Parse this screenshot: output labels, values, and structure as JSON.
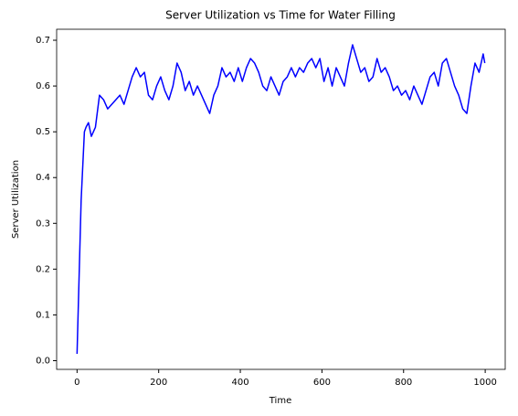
{
  "chart_data": {
    "type": "line",
    "title": "Server Utilization vs Time for Water Filling",
    "x_label": "Time",
    "y_label": "Server Utilization",
    "xlim": [
      -50,
      1049
    ],
    "ylim": [
      -0.019,
      0.724
    ],
    "xticks": [
      0,
      200,
      400,
      600,
      800,
      1000
    ],
    "yticks": [
      {
        "value": 0,
        "label": "0.0"
      },
      0.1,
      0.2,
      0.3,
      0.4,
      0.5,
      0.6,
      0.7
    ],
    "series": [
      {
        "color": "#0000ff",
        "x": [
          0,
          10,
          18,
          22,
          28,
          35,
          45,
          55,
          65,
          75,
          85,
          95,
          105,
          115,
          125,
          135,
          145,
          155,
          165,
          175,
          185,
          195,
          205,
          215,
          225,
          235,
          245,
          255,
          265,
          275,
          285,
          295,
          305,
          315,
          325,
          335,
          345,
          355,
          365,
          375,
          385,
          395,
          405,
          415,
          425,
          435,
          445,
          455,
          465,
          475,
          485,
          495,
          505,
          515,
          525,
          535,
          545,
          555,
          565,
          575,
          585,
          595,
          605,
          615,
          625,
          635,
          645,
          655,
          665,
          675,
          685,
          695,
          705,
          715,
          725,
          735,
          745,
          755,
          765,
          775,
          785,
          795,
          805,
          815,
          825,
          835,
          845,
          855,
          865,
          875,
          885,
          895,
          905,
          915,
          925,
          935,
          945,
          955,
          965,
          975,
          985,
          995,
          999
        ],
        "values": [
          0.015,
          0.35,
          0.5,
          0.51,
          0.52,
          0.49,
          0.51,
          0.58,
          0.57,
          0.55,
          0.56,
          0.57,
          0.58,
          0.56,
          0.59,
          0.62,
          0.64,
          0.62,
          0.63,
          0.58,
          0.57,
          0.6,
          0.62,
          0.59,
          0.57,
          0.6,
          0.65,
          0.63,
          0.59,
          0.61,
          0.58,
          0.6,
          0.58,
          0.56,
          0.54,
          0.58,
          0.6,
          0.64,
          0.62,
          0.63,
          0.61,
          0.64,
          0.61,
          0.64,
          0.66,
          0.65,
          0.63,
          0.6,
          0.59,
          0.62,
          0.6,
          0.58,
          0.61,
          0.62,
          0.64,
          0.62,
          0.64,
          0.63,
          0.65,
          0.66,
          0.64,
          0.66,
          0.61,
          0.64,
          0.6,
          0.64,
          0.62,
          0.6,
          0.65,
          0.69,
          0.66,
          0.63,
          0.64,
          0.61,
          0.62,
          0.66,
          0.63,
          0.64,
          0.62,
          0.59,
          0.6,
          0.58,
          0.59,
          0.57,
          0.6,
          0.58,
          0.56,
          0.59,
          0.62,
          0.63,
          0.6,
          0.65,
          0.66,
          0.63,
          0.6,
          0.58,
          0.55,
          0.54,
          0.6,
          0.65,
          0.63,
          0.67,
          0.65
        ]
      }
    ]
  }
}
